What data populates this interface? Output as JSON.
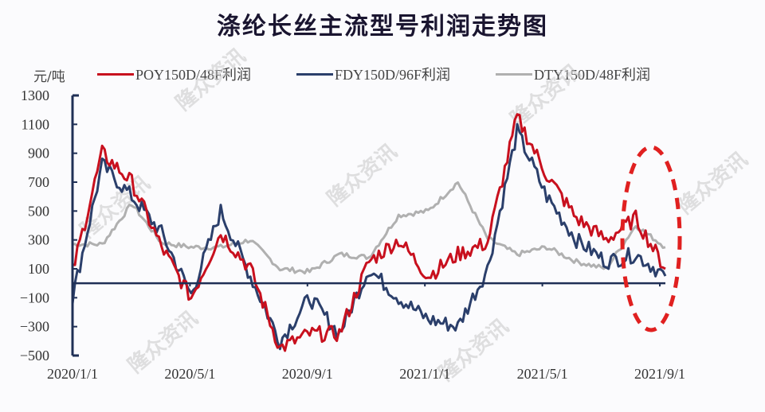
{
  "title": "涤纶长丝主流型号利润走势图",
  "unit_label": "元/吨",
  "legend": [
    {
      "label": "POY150D/48F利润",
      "color": "#c8101e"
    },
    {
      "label": "FDY150D/96F利润",
      "color": "#2b3f6b"
    },
    {
      "label": "DTY150D/48F利润",
      "color": "#b0b0b0"
    }
  ],
  "colors": {
    "axis": "#1f2f55",
    "highlight_ellipse": "#e02020"
  },
  "watermark": "隆众资讯",
  "chart_data": {
    "type": "line",
    "title": "涤纶长丝主流型号利润走势图",
    "xlabel": "",
    "ylabel": "元/吨",
    "ylim": [
      -500,
      1300
    ],
    "yticks": [
      1300,
      1100,
      900,
      700,
      500,
      300,
      100,
      -100,
      -300,
      -500
    ],
    "xticks": [
      "2020/1/1",
      "2020/5/1",
      "2020/9/1",
      "2021/1/1",
      "2021/5/1",
      "2021/9/1"
    ],
    "grid": false,
    "legend_position": "top",
    "x": [
      "2020/1",
      "2020/2",
      "2020/3",
      "2020/4",
      "2020/5",
      "2020/6",
      "2020/7",
      "2020/8",
      "2020/9",
      "2020/10",
      "2020/11",
      "2020/12",
      "2021/1",
      "2021/2",
      "2021/3",
      "2021/4",
      "2021/5",
      "2021/6",
      "2021/7",
      "2021/8",
      "2021/9"
    ],
    "series": [
      {
        "name": "POY150D/48F利润",
        "values": [
          80,
          900,
          700,
          250,
          -100,
          350,
          100,
          -450,
          -350,
          -350,
          150,
          300,
          50,
          200,
          280,
          1150,
          750,
          450,
          300,
          450,
          100
        ]
      },
      {
        "name": "FDY150D/96F利润",
        "values": [
          -100,
          820,
          600,
          350,
          -80,
          500,
          50,
          -400,
          -100,
          -350,
          100,
          -100,
          -250,
          -300,
          100,
          1050,
          600,
          300,
          150,
          200,
          50
        ]
      },
      {
        "name": "DTY150D/48F利润",
        "values": [
          270,
          270,
          550,
          280,
          250,
          250,
          300,
          100,
          80,
          200,
          180,
          470,
          500,
          700,
          310,
          200,
          250,
          150,
          100,
          400,
          250
        ]
      }
    ],
    "annotations": [
      "red dashed ellipse highlighting 2021/8–2021/9 region"
    ]
  }
}
